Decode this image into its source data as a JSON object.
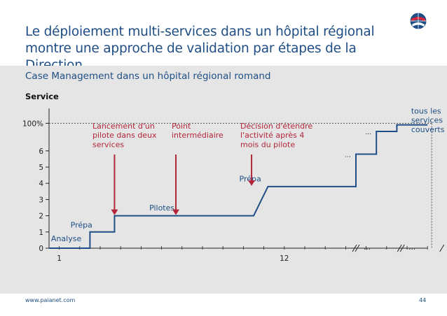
{
  "slide": {
    "title": "Le déploiement multi-services dans un hôpital régional montre une approche de validation par étapes de la Direction",
    "footer_url": "www.paianet.com",
    "page_number": "44",
    "logo_icon": "globe-logo-icon"
  },
  "colors": {
    "brand": "#1e4e86",
    "annotation": "#b3263a",
    "panel": "#e5e5e5"
  },
  "chart_data": {
    "type": "line",
    "title": "Case Management dans un hôpital régional romand",
    "ylabel": "Service",
    "xlabel": "",
    "y_ticks": [
      "0",
      "1",
      "2",
      "3",
      "4",
      "5",
      "6",
      "100%"
    ],
    "x_ticks": [
      "1",
      "12"
    ],
    "x_breaks": [
      "…",
      "…"
    ],
    "grid": false,
    "series": [
      {
        "points": [
          [
            0.5,
            0
          ],
          [
            2.5,
            0
          ],
          [
            2.5,
            1
          ],
          [
            3.7,
            1
          ],
          [
            3.7,
            2
          ],
          [
            10.5,
            2
          ],
          [
            11.2,
            3.8
          ],
          [
            15.5,
            3.8
          ],
          [
            15.5,
            5.8
          ],
          [
            16.5,
            5.8
          ],
          [
            16.5,
            7.2
          ],
          [
            17.5,
            7.2
          ],
          [
            17.5,
            7.6
          ],
          [
            19,
            7.6
          ]
        ]
      }
    ],
    "full_coverage_level": 7.7,
    "phase_labels": [
      {
        "text": "Analyse",
        "x": 0.6,
        "y": 0.25
      },
      {
        "text": "Prépa",
        "x": 1.55,
        "y": 1.1
      },
      {
        "text": "Pilotes",
        "x": 5.4,
        "y": 2.15
      },
      {
        "text": "Prépa",
        "x": 9.8,
        "y": 3.95
      },
      {
        "text": "tous les services couverts",
        "x": 18.2,
        "y": 7.7
      }
    ],
    "annotations": [
      {
        "text": "Lancement d'un pilote dans deux services",
        "x": 3.7
      },
      {
        "text": "Point intermédiaire",
        "x": 6.7
      },
      {
        "text": "Décision d'étendre l'activité après 4 mois du pilote",
        "x": 10.4
      }
    ]
  }
}
